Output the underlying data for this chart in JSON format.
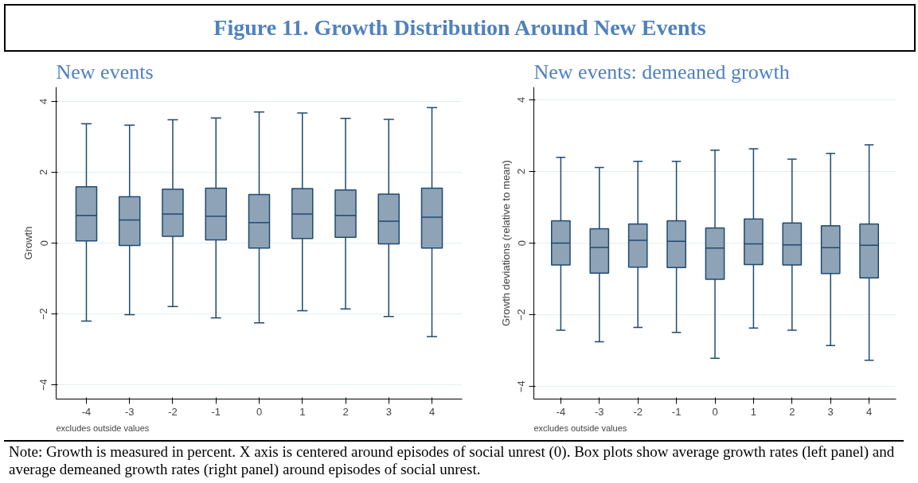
{
  "chart_data": [
    {
      "type": "box",
      "title": "New events",
      "ylabel": "Growth",
      "categories": [
        "-4",
        "-3",
        "-2",
        "-1",
        "0",
        "1",
        "2",
        "3",
        "4"
      ],
      "color": "#8ea3b6",
      "ylim": [
        -4.4,
        4.4
      ],
      "yticks": [
        -4,
        -2,
        0,
        2,
        4
      ],
      "grid": "y",
      "boxes": [
        {
          "low": -2.2,
          "q1": 0.06,
          "median": 0.78,
          "q3": 1.59,
          "high": 3.37
        },
        {
          "low": -2.02,
          "q1": -0.07,
          "median": 0.65,
          "q3": 1.31,
          "high": 3.33
        },
        {
          "low": -1.79,
          "q1": 0.19,
          "median": 0.82,
          "q3": 1.52,
          "high": 3.48
        },
        {
          "low": -2.11,
          "q1": 0.09,
          "median": 0.76,
          "q3": 1.55,
          "high": 3.53
        },
        {
          "low": -2.25,
          "q1": -0.14,
          "median": 0.58,
          "q3": 1.37,
          "high": 3.7
        },
        {
          "low": -1.91,
          "q1": 0.13,
          "median": 0.82,
          "q3": 1.54,
          "high": 3.67
        },
        {
          "low": -1.86,
          "q1": 0.16,
          "median": 0.78,
          "q3": 1.5,
          "high": 3.52
        },
        {
          "low": -2.07,
          "q1": -0.02,
          "median": 0.62,
          "q3": 1.38,
          "high": 3.49
        },
        {
          "low": -2.64,
          "q1": -0.14,
          "median": 0.73,
          "q3": 1.55,
          "high": 3.82
        }
      ],
      "annotations": [
        "Figure 11. Growth Distribution Around New Events",
        "excludes outside values"
      ]
    },
    {
      "type": "box",
      "title": "New events: demeaned growth",
      "ylabel": "Growth deviations (relative to mean)",
      "categories": [
        "-4",
        "-3",
        "-2",
        "-1",
        "0",
        "1",
        "2",
        "3",
        "4"
      ],
      "color": "#8ea3b6",
      "ylim": [
        -4.35,
        4.35
      ],
      "yticks": [
        -4,
        -2,
        0,
        2,
        4
      ],
      "grid": "y",
      "boxes": [
        {
          "low": -2.43,
          "q1": -0.61,
          "median": 0.0,
          "q3": 0.62,
          "high": 2.39
        },
        {
          "low": -2.75,
          "q1": -0.84,
          "median": -0.12,
          "q3": 0.4,
          "high": 2.11
        },
        {
          "low": -2.35,
          "q1": -0.67,
          "median": 0.08,
          "q3": 0.53,
          "high": 2.28
        },
        {
          "low": -2.49,
          "q1": -0.68,
          "median": 0.05,
          "q3": 0.62,
          "high": 2.28
        },
        {
          "low": -3.21,
          "q1": -1.01,
          "median": -0.14,
          "q3": 0.42,
          "high": 2.59
        },
        {
          "low": -2.37,
          "q1": -0.6,
          "median": -0.02,
          "q3": 0.67,
          "high": 2.63
        },
        {
          "low": -2.43,
          "q1": -0.61,
          "median": -0.05,
          "q3": 0.56,
          "high": 2.34
        },
        {
          "low": -2.86,
          "q1": -0.85,
          "median": -0.13,
          "q3": 0.48,
          "high": 2.5
        },
        {
          "low": -3.27,
          "q1": -0.97,
          "median": -0.06,
          "q3": 0.53,
          "high": 2.74
        }
      ],
      "annotations": [
        "excludes outside values",
        "Note: Growth is measured in percent. X axis is centered around episodes of social unrest (0). Box plots show average growth rates (left panel) and average demeaned growth rates (right panel) around episodes of social unrest."
      ]
    }
  ]
}
